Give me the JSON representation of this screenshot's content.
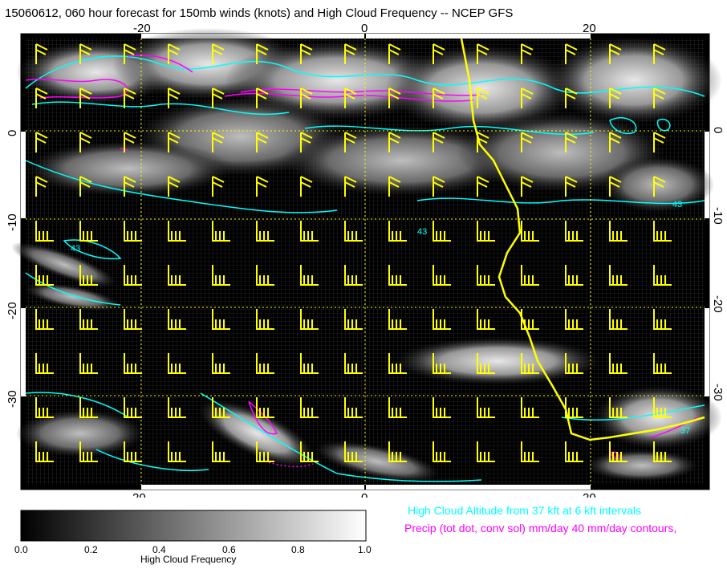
{
  "title": "15060612, 060 hour forecast for 150mb winds (knots) and High Cloud Frequency -- NCEP GFS",
  "map": {
    "lon_ticks": [
      "-20",
      "0",
      "20"
    ],
    "lat_ticks": [
      "0",
      "-10",
      "-20",
      "-30"
    ],
    "contour_labels": [
      "43",
      "43",
      "43",
      "37"
    ]
  },
  "legend": {
    "cloud_altitude": "High Cloud Altitude from 37 kft at 6 kft intervals",
    "precip": "Precip (tot dot, conv sol) mm/day 40 mm/day contours,"
  },
  "colorbar": {
    "ticks": [
      "0.0",
      "0.2",
      "0.4",
      "0.6",
      "0.8",
      "1.0"
    ],
    "title": "High Cloud Frequency"
  },
  "colors": {
    "wind_barbs": "#ffff00",
    "coastline": "#ffff00",
    "cloud_altitude_contours": "#00ffff",
    "precip_contours": "#ff00ff",
    "grid": "#ffff00"
  }
}
